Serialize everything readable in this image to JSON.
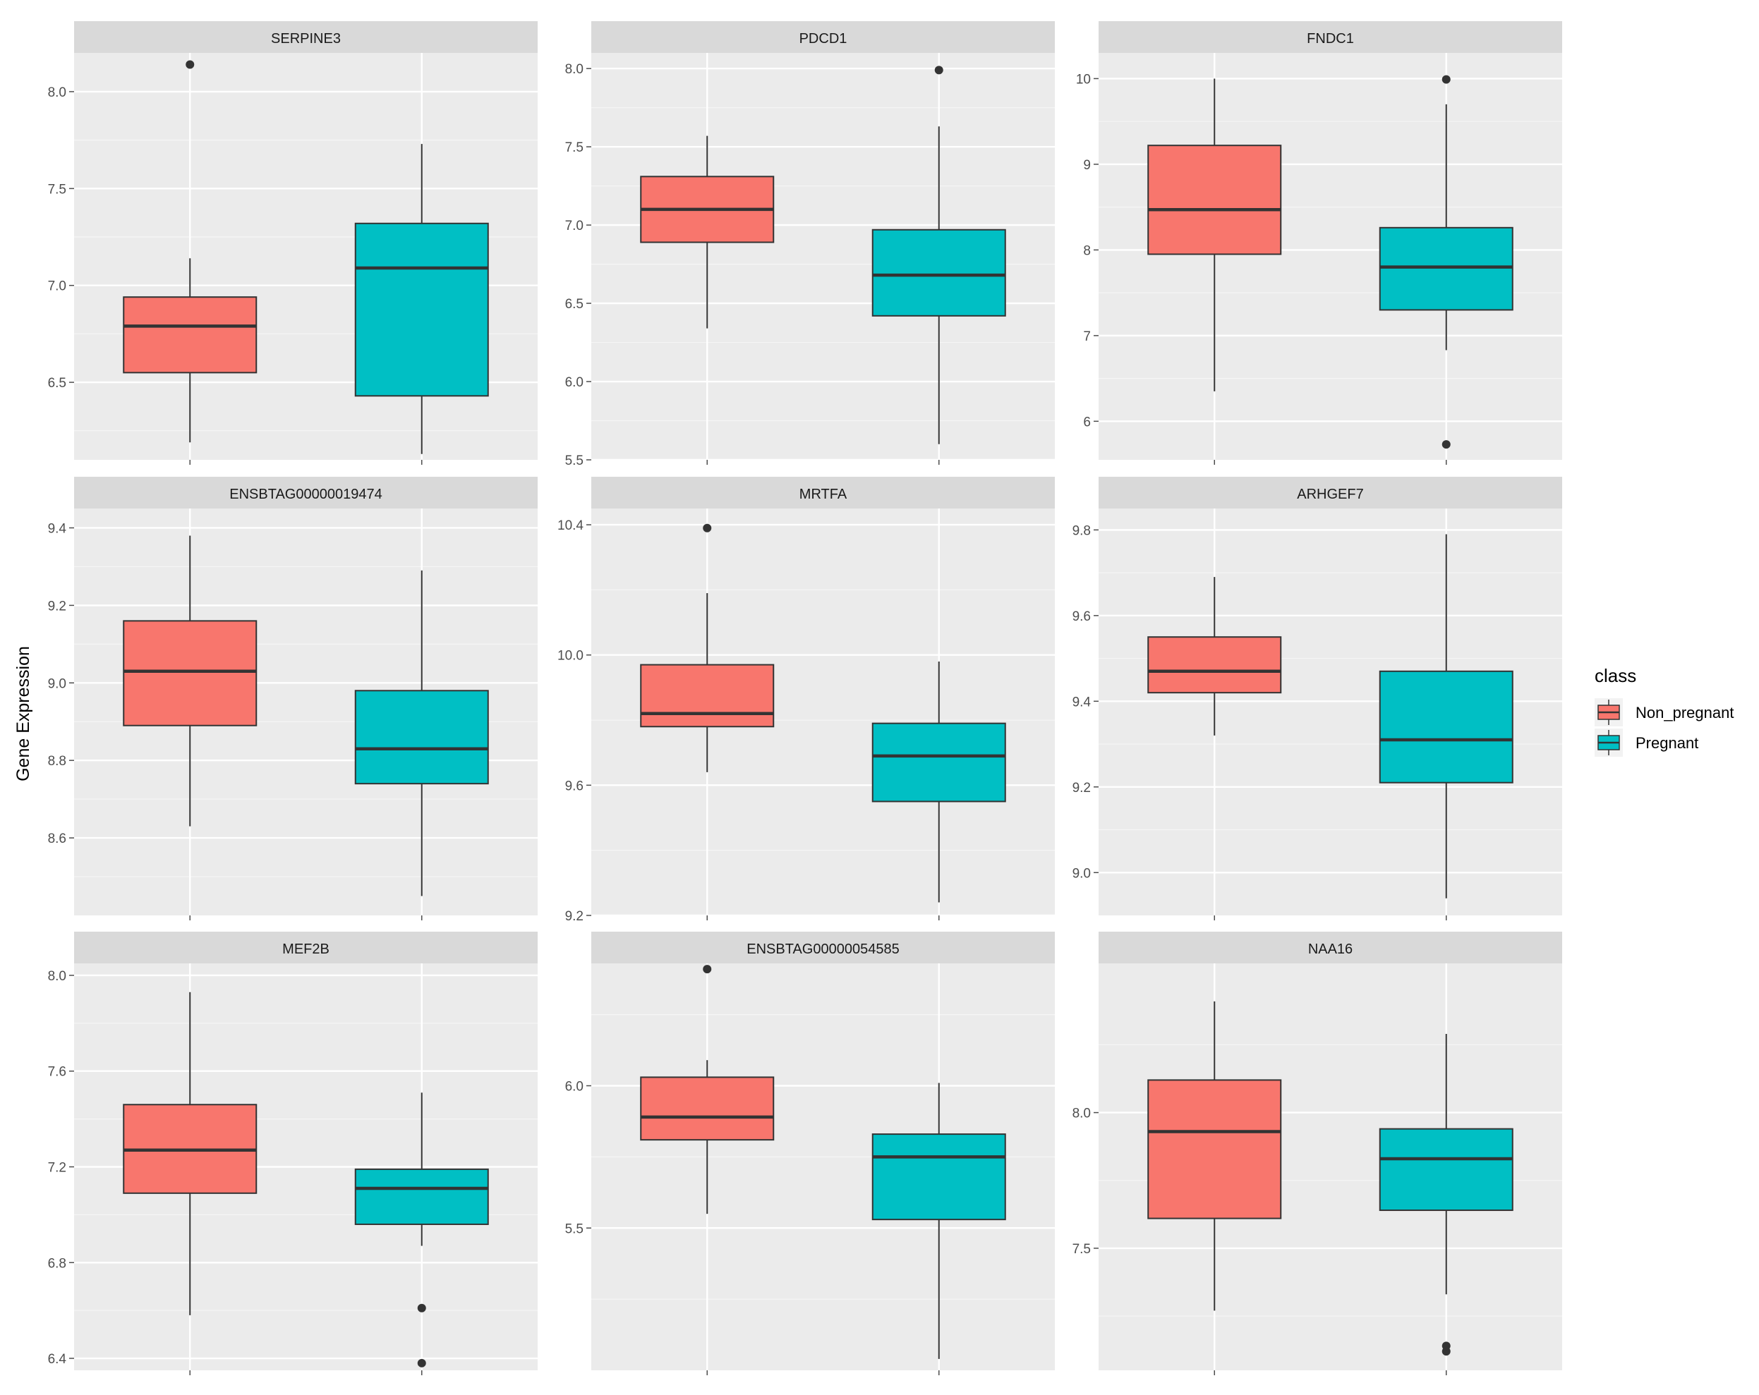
{
  "chart_data": {
    "type": "boxplot",
    "ylabel": "Gene Expression",
    "xlabel": "",
    "legend": {
      "title": "class",
      "position": "right",
      "entries": [
        {
          "label": "Non_pregnant",
          "color": "#F8766D"
        },
        {
          "label": "Pregnant",
          "color": "#00BFC4"
        }
      ]
    },
    "panels": [
      {
        "title": "SERPINE3",
        "ylim": [
          6.1,
          8.2
        ],
        "yticks": [
          "6.5",
          "7.0",
          "7.5",
          "8.0"
        ],
        "ytick_values": [
          6.5,
          7.0,
          7.5,
          8.0
        ],
        "groups": [
          {
            "class": "Non_pregnant",
            "whisker_low": 6.19,
            "q1": 6.55,
            "median": 6.79,
            "q3": 6.94,
            "whisker_high": 7.14,
            "outliers": [
              8.14
            ]
          },
          {
            "class": "Pregnant",
            "whisker_low": 6.13,
            "q1": 6.43,
            "median": 7.09,
            "q3": 7.32,
            "whisker_high": 7.73,
            "outliers": []
          }
        ]
      },
      {
        "title": "PDCD1",
        "ylim": [
          5.5,
          8.1
        ],
        "yticks": [
          "5.5",
          "6.0",
          "6.5",
          "7.0",
          "7.5",
          "8.0"
        ],
        "ytick_values": [
          5.5,
          6.0,
          6.5,
          7.0,
          7.5,
          8.0
        ],
        "groups": [
          {
            "class": "Non_pregnant",
            "whisker_low": 6.34,
            "q1": 6.89,
            "median": 7.1,
            "q3": 7.31,
            "whisker_high": 7.57,
            "outliers": []
          },
          {
            "class": "Pregnant",
            "whisker_low": 5.6,
            "q1": 6.42,
            "median": 6.68,
            "q3": 6.97,
            "whisker_high": 7.63,
            "outliers": [
              7.99
            ]
          }
        ]
      },
      {
        "title": "FNDC1",
        "ylim": [
          5.55,
          10.3
        ],
        "yticks": [
          "6",
          "7",
          "8",
          "9",
          "10"
        ],
        "ytick_values": [
          6,
          7,
          8,
          9,
          10
        ],
        "groups": [
          {
            "class": "Non_pregnant",
            "whisker_low": 6.35,
            "q1": 7.95,
            "median": 8.47,
            "q3": 9.22,
            "whisker_high": 10.0,
            "outliers": []
          },
          {
            "class": "Pregnant",
            "whisker_low": 6.83,
            "q1": 7.3,
            "median": 7.8,
            "q3": 8.26,
            "whisker_high": 9.7,
            "outliers": [
              9.99,
              5.73
            ]
          }
        ]
      },
      {
        "title": "ENSBTAG00000019474",
        "ylim": [
          8.4,
          9.45
        ],
        "yticks": [
          "8.6",
          "8.8",
          "9.0",
          "9.2",
          "9.4"
        ],
        "ytick_values": [
          8.6,
          8.8,
          9.0,
          9.2,
          9.4
        ],
        "groups": [
          {
            "class": "Non_pregnant",
            "whisker_low": 8.63,
            "q1": 8.89,
            "median": 9.03,
            "q3": 9.16,
            "whisker_high": 9.38,
            "outliers": []
          },
          {
            "class": "Pregnant",
            "whisker_low": 8.45,
            "q1": 8.74,
            "median": 8.83,
            "q3": 8.98,
            "whisker_high": 9.29,
            "outliers": []
          }
        ]
      },
      {
        "title": "MRTFA",
        "ylim": [
          9.2,
          10.45
        ],
        "yticks": [
          "9.2",
          "9.6",
          "10.0",
          "10.4"
        ],
        "ytick_values": [
          9.2,
          9.6,
          10.0,
          10.4
        ],
        "groups": [
          {
            "class": "Non_pregnant",
            "whisker_low": 9.64,
            "q1": 9.78,
            "median": 9.82,
            "q3": 9.97,
            "whisker_high": 10.19,
            "outliers": [
              10.39
            ]
          },
          {
            "class": "Pregnant",
            "whisker_low": 9.24,
            "q1": 9.55,
            "median": 9.69,
            "q3": 9.79,
            "whisker_high": 9.98,
            "outliers": []
          }
        ]
      },
      {
        "title": "ARHGEF7",
        "ylim": [
          8.9,
          9.85
        ],
        "yticks": [
          "9.0",
          "9.2",
          "9.4",
          "9.6",
          "9.8"
        ],
        "ytick_values": [
          9.0,
          9.2,
          9.4,
          9.6,
          9.8
        ],
        "groups": [
          {
            "class": "Non_pregnant",
            "whisker_low": 9.32,
            "q1": 9.42,
            "median": 9.47,
            "q3": 9.55,
            "whisker_high": 9.69,
            "outliers": []
          },
          {
            "class": "Pregnant",
            "whisker_low": 8.94,
            "q1": 9.21,
            "median": 9.31,
            "q3": 9.47,
            "whisker_high": 9.79,
            "outliers": []
          }
        ]
      },
      {
        "title": "MEF2B",
        "ylim": [
          6.35,
          8.05
        ],
        "yticks": [
          "6.4",
          "6.8",
          "7.2",
          "7.6",
          "8.0"
        ],
        "ytick_values": [
          6.4,
          6.8,
          7.2,
          7.6,
          8.0
        ],
        "groups": [
          {
            "class": "Non_pregnant",
            "whisker_low": 6.58,
            "q1": 7.09,
            "median": 7.27,
            "q3": 7.46,
            "whisker_high": 7.93,
            "outliers": []
          },
          {
            "class": "Pregnant",
            "whisker_low": 6.87,
            "q1": 6.96,
            "median": 7.11,
            "q3": 7.19,
            "whisker_high": 7.51,
            "outliers": [
              6.61,
              6.38
            ]
          }
        ]
      },
      {
        "title": "ENSBTAG00000054585",
        "ylim": [
          5.0,
          6.43
        ],
        "yticks": [
          "5.5",
          "6.0"
        ],
        "ytick_values": [
          5.5,
          6.0
        ],
        "groups": [
          {
            "class": "Non_pregnant",
            "whisker_low": 5.55,
            "q1": 5.81,
            "median": 5.89,
            "q3": 6.03,
            "whisker_high": 6.09,
            "outliers": [
              6.41
            ]
          },
          {
            "class": "Pregnant",
            "whisker_low": 5.04,
            "q1": 5.53,
            "median": 5.75,
            "q3": 5.83,
            "whisker_high": 6.01,
            "outliers": []
          }
        ]
      },
      {
        "title": "NAA16",
        "ylim": [
          7.05,
          8.55
        ],
        "yticks": [
          "7.5",
          "8.0"
        ],
        "ytick_values": [
          7.5,
          8.0
        ],
        "groups": [
          {
            "class": "Non_pregnant",
            "whisker_low": 7.27,
            "q1": 7.61,
            "median": 7.93,
            "q3": 8.12,
            "whisker_high": 8.41,
            "outliers": []
          },
          {
            "class": "Pregnant",
            "whisker_low": 7.33,
            "q1": 7.64,
            "median": 7.83,
            "q3": 7.94,
            "whisker_high": 8.29,
            "outliers": [
              7.12,
              7.14
            ]
          }
        ]
      }
    ]
  }
}
